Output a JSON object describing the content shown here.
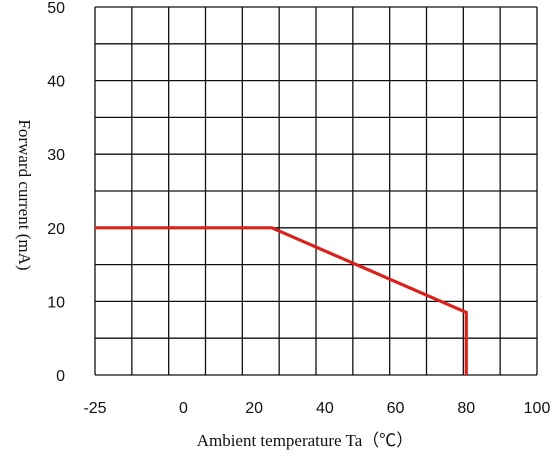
{
  "chart_data": {
    "type": "line",
    "xlabel": "Ambient temperature Ta（℃）",
    "ylabel": "Forward current (mA)",
    "xlim": [
      -25,
      100
    ],
    "ylim": [
      0,
      50
    ],
    "x_ticks": [
      -25,
      0,
      20,
      40,
      60,
      80,
      100
    ],
    "y_ticks": [
      0,
      10,
      20,
      30,
      40,
      50
    ],
    "grid": true,
    "series": [
      {
        "color": "#d9221c",
        "points": [
          {
            "x": -25,
            "y": 20
          },
          {
            "x": 25,
            "y": 20
          },
          {
            "x": 80,
            "y": 8.5
          },
          {
            "x": 80,
            "y": 0
          }
        ]
      }
    ]
  }
}
